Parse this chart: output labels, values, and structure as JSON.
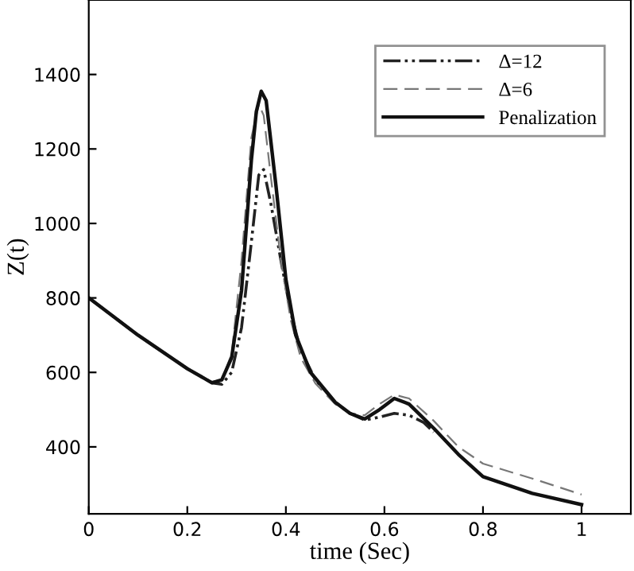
{
  "chart_data": {
    "type": "line",
    "xlabel": "time (Sec)",
    "ylabel": "Z(t)",
    "xlim": [
      0,
      1.1
    ],
    "ylim": [
      220,
      1600
    ],
    "xticks": [
      0,
      0.2,
      0.4,
      0.6,
      0.8,
      1
    ],
    "yticks": [
      400,
      600,
      800,
      1000,
      1200,
      1400
    ],
    "grid": false,
    "legend": "top right",
    "series": [
      {
        "name": "Δ=12",
        "color": "#222222",
        "line_style": "dashdotdot",
        "x": [
          0,
          0.1,
          0.2,
          0.25,
          0.27,
          0.29,
          0.31,
          0.33,
          0.345,
          0.355,
          0.37,
          0.39,
          0.41,
          0.43,
          0.46,
          0.5,
          0.53,
          0.56,
          0.59,
          0.62,
          0.65,
          0.68,
          0.7
        ],
        "values": [
          800,
          700,
          610,
          572,
          568,
          600,
          720,
          950,
          1130,
          1145,
          1050,
          900,
          760,
          660,
          580,
          520,
          490,
          472,
          480,
          490,
          485,
          465,
          440
        ]
      },
      {
        "name": "Δ=6",
        "color": "#777777",
        "line_style": "dashed",
        "x": [
          0,
          0.1,
          0.2,
          0.25,
          0.27,
          0.29,
          0.31,
          0.33,
          0.345,
          0.355,
          0.37,
          0.39,
          0.41,
          0.43,
          0.46,
          0.5,
          0.53,
          0.56,
          0.59,
          0.62,
          0.65,
          0.7,
          0.75,
          0.8,
          0.9,
          1.0
        ],
        "values": [
          800,
          700,
          610,
          575,
          580,
          650,
          900,
          1230,
          1320,
          1290,
          1120,
          900,
          740,
          640,
          570,
          515,
          490,
          485,
          515,
          540,
          530,
          470,
          400,
          355,
          315,
          272
        ]
      },
      {
        "name": "Penalization",
        "color": "#111111",
        "line_style": "solid",
        "x": [
          0,
          0.1,
          0.2,
          0.25,
          0.27,
          0.29,
          0.31,
          0.33,
          0.34,
          0.35,
          0.36,
          0.38,
          0.4,
          0.42,
          0.45,
          0.5,
          0.53,
          0.56,
          0.59,
          0.62,
          0.65,
          0.7,
          0.75,
          0.8,
          0.9,
          1.0
        ],
        "values": [
          800,
          700,
          610,
          572,
          580,
          640,
          820,
          1170,
          1300,
          1355,
          1330,
          1100,
          850,
          700,
          600,
          520,
          490,
          475,
          500,
          530,
          515,
          450,
          380,
          320,
          275,
          245
        ]
      }
    ]
  }
}
